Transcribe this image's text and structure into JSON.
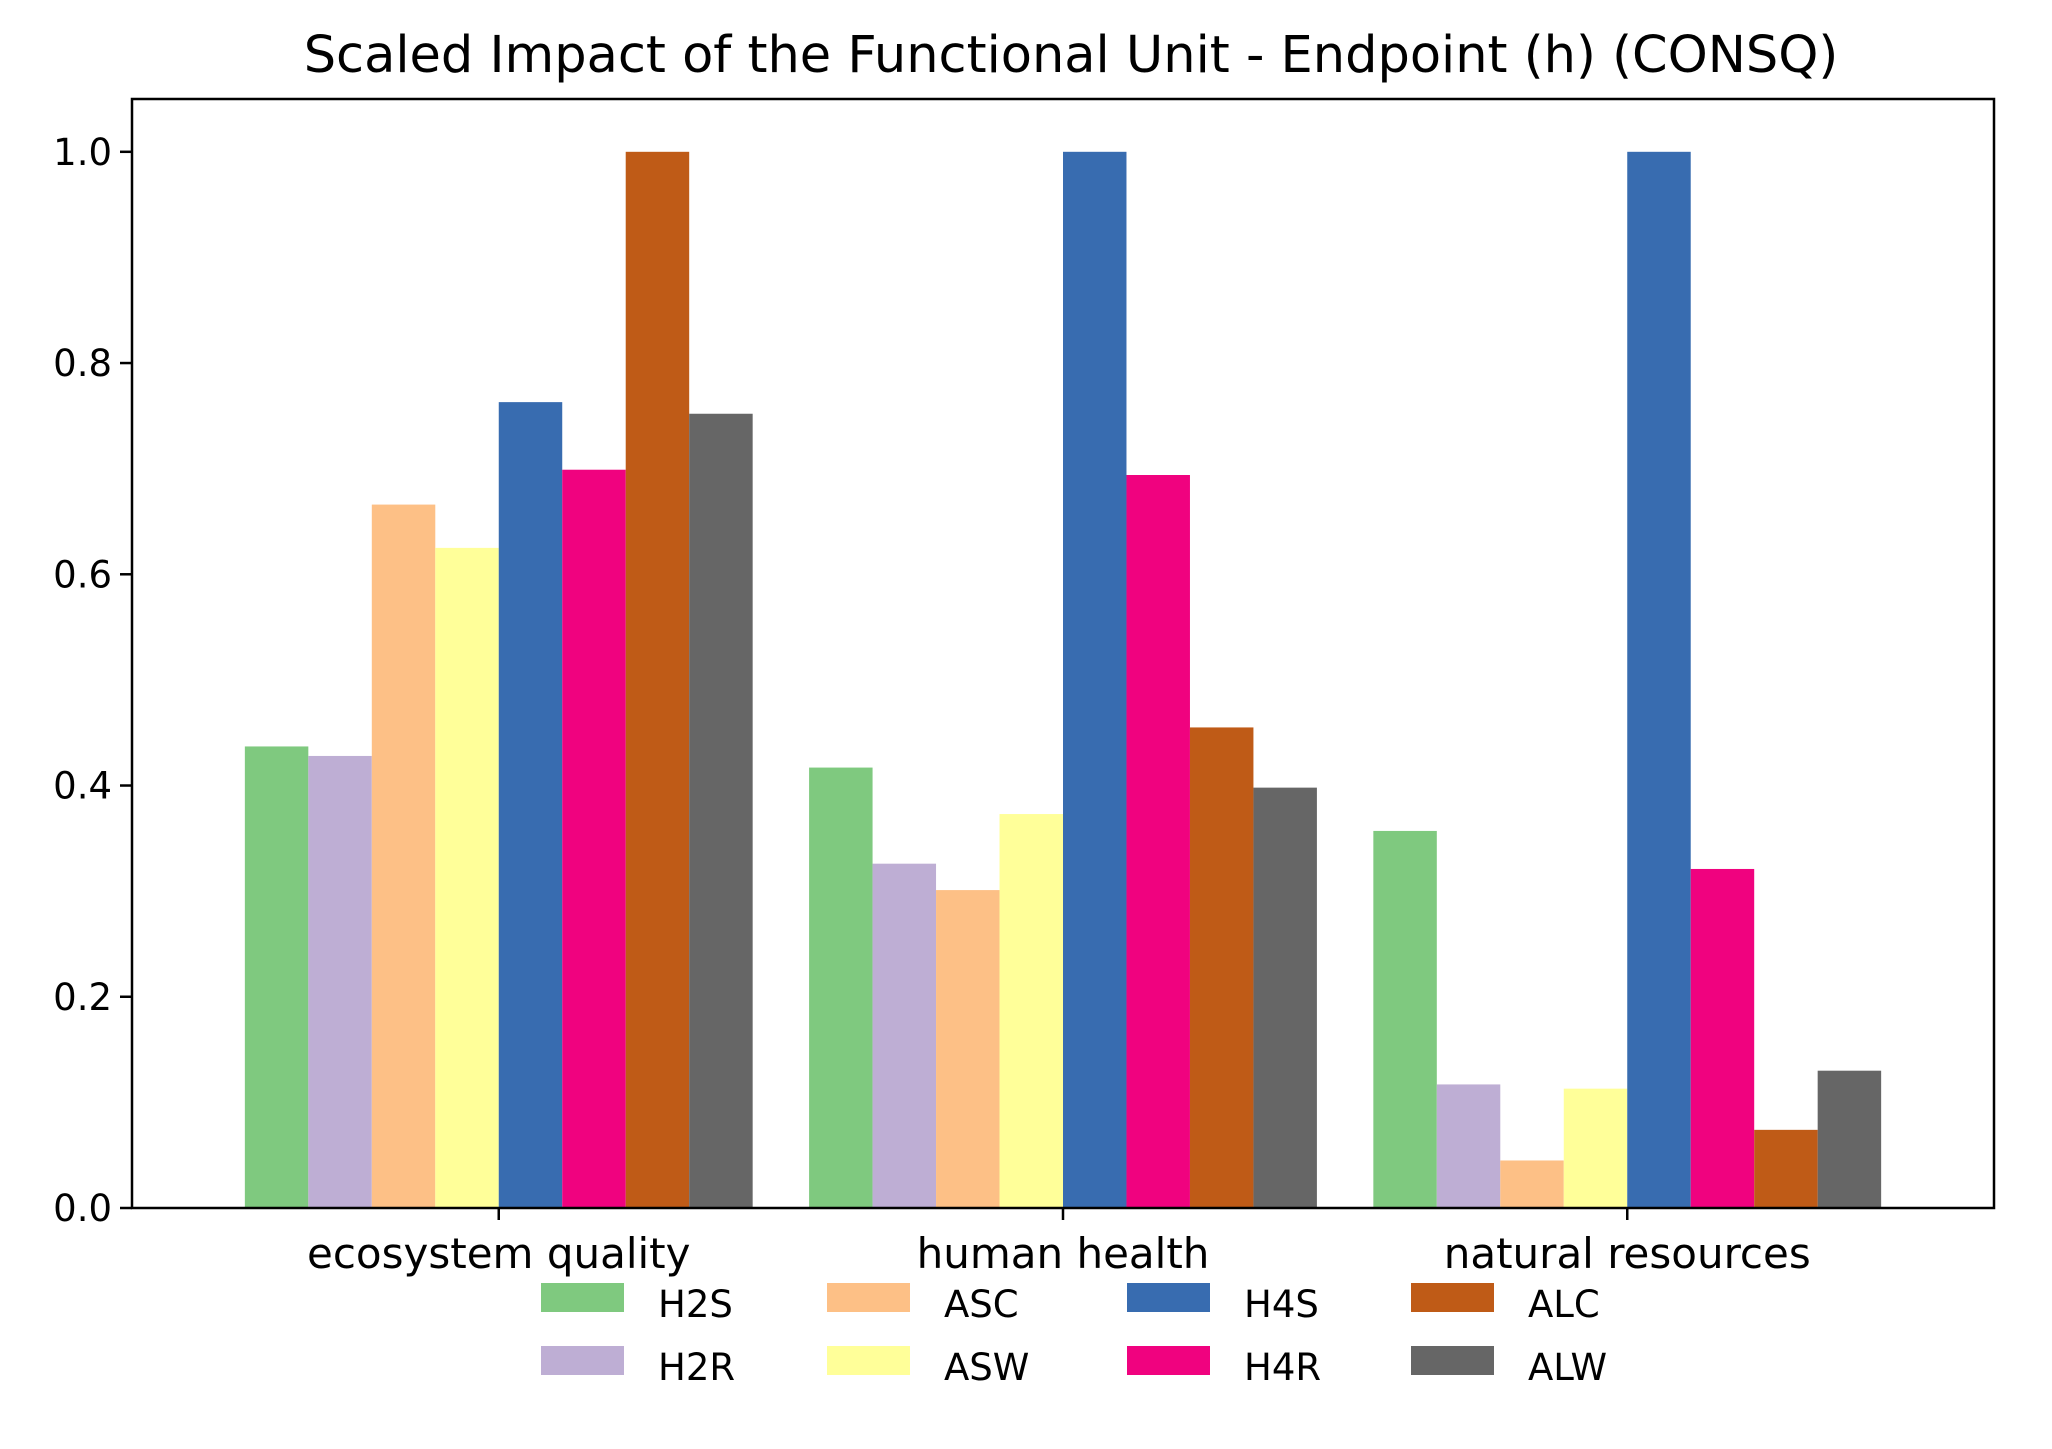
{
  "chart_data": {
    "type": "bar",
    "title": "Scaled Impact of the Functional Unit - Endpoint (h) (CONSQ)",
    "xlabel": "",
    "ylabel": "",
    "ylim": [
      0,
      1.05
    ],
    "yticks": [
      "0.0",
      "0.2",
      "0.4",
      "0.6",
      "0.8",
      "1.0"
    ],
    "categories": [
      "ecosystem quality",
      "human health",
      "natural resources"
    ],
    "grid": false,
    "legend_position": "bottom-center",
    "series": [
      {
        "name": "H2S",
        "color": "#7fc97f",
        "values": [
          0.437,
          0.417,
          0.357
        ]
      },
      {
        "name": "H2R",
        "color": "#beaed4",
        "values": [
          0.428,
          0.326,
          0.117
        ]
      },
      {
        "name": "ASC",
        "color": "#fdc086",
        "values": [
          0.666,
          0.301,
          0.045
        ]
      },
      {
        "name": "ASW",
        "color": "#ffff99",
        "values": [
          0.625,
          0.373,
          0.113
        ]
      },
      {
        "name": "H4S",
        "color": "#386cb0",
        "values": [
          0.763,
          1.0,
          1.0
        ]
      },
      {
        "name": "H4R",
        "color": "#f0027f",
        "values": [
          0.699,
          0.694,
          0.321
        ]
      },
      {
        "name": "ALC",
        "color": "#bf5b17",
        "values": [
          1.0,
          0.455,
          0.074
        ]
      },
      {
        "name": "ALW",
        "color": "#666666",
        "values": [
          0.752,
          0.398,
          0.13
        ]
      }
    ]
  }
}
